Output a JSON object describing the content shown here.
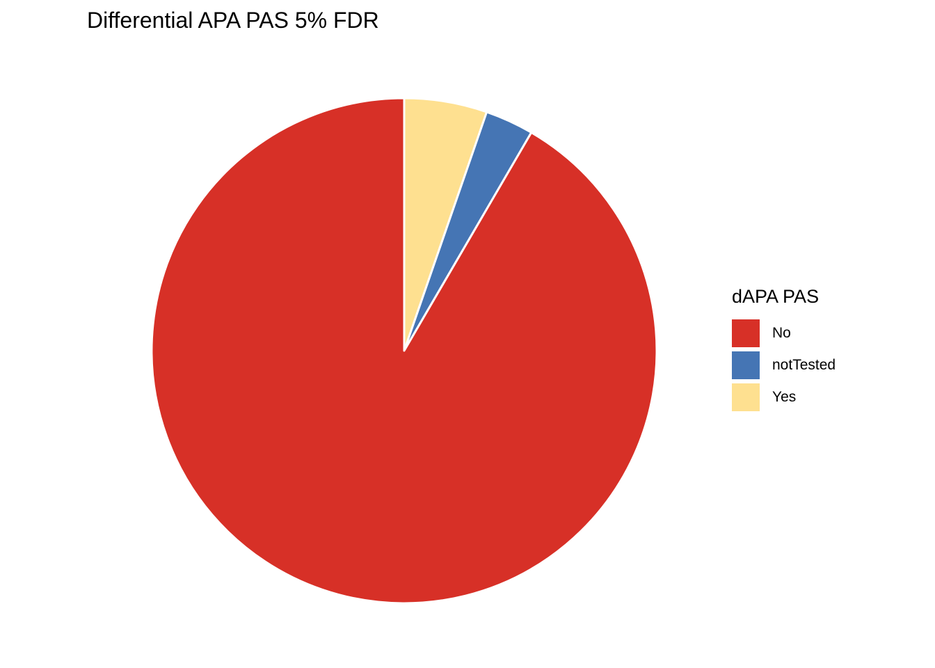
{
  "chart_data": {
    "type": "pie",
    "title": "Differential APA PAS 5% FDR",
    "legend": {
      "title": "dAPA PAS",
      "position": "right"
    },
    "slices": [
      {
        "label": "No",
        "value": 91.6,
        "color": "#d73027"
      },
      {
        "label": "notTested",
        "value": 3.1,
        "color": "#4575b4"
      },
      {
        "label": "Yes",
        "value": 5.3,
        "color": "#fee090"
      }
    ],
    "order": [
      "Yes",
      "notTested",
      "No"
    ],
    "start_angle": "12 o'clock",
    "direction": "clockwise"
  }
}
